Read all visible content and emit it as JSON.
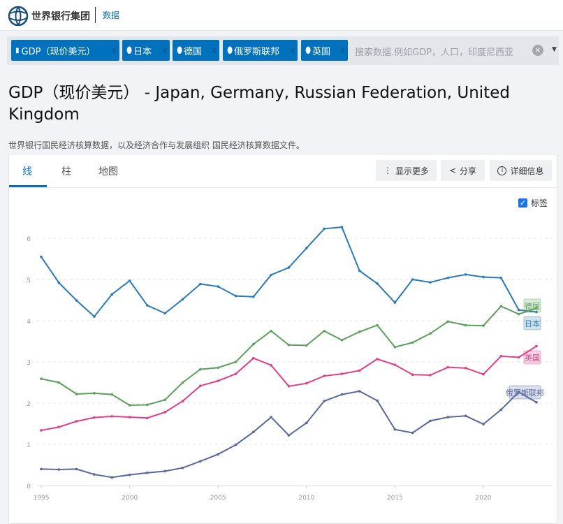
{
  "header": {
    "logo_text": "世界银行集团",
    "data_link": "数据"
  },
  "filters": {
    "chips": [
      {
        "label": "GDP（现价美元）",
        "icon": "bar-chart-icon"
      },
      {
        "label": "日本",
        "icon": "map-pin-icon"
      },
      {
        "label": "德国",
        "icon": "map-pin-icon"
      },
      {
        "label": "俄罗斯联邦",
        "icon": "map-pin-icon"
      },
      {
        "label": "英国",
        "icon": "map-pin-icon"
      }
    ],
    "remove": "x",
    "search_placeholder": "搜索数据.例如GDP，人口，印度尼西亚",
    "clear": "×"
  },
  "page": {
    "title": "GDP（现价美元） - Japan, Germany, Russian Federation, United Kingdom",
    "source": "世界银行国民经济核算数据，以及经济合作与发展组织 国民经济核算数据文件。"
  },
  "tabs": [
    {
      "label": "线"
    },
    {
      "label": "柱"
    },
    {
      "label": "地图"
    }
  ],
  "actions": {
    "more": "显示更多",
    "share": "分享",
    "details": "详细信息"
  },
  "labels_toggle": {
    "label": "标签",
    "checked": true
  },
  "chart_data": {
    "type": "line",
    "title": "GDP（现价美元）",
    "x": [
      1995,
      1996,
      1997,
      1998,
      1999,
      2000,
      2001,
      2002,
      2003,
      2004,
      2005,
      2006,
      2007,
      2008,
      2009,
      2010,
      2011,
      2012,
      2013,
      2014,
      2015,
      2016,
      2017,
      2018,
      2019,
      2020,
      2021,
      2022,
      2023
    ],
    "xticks": [
      "1995",
      "2000",
      "2005",
      "2010",
      "2015",
      "2020"
    ],
    "yticks": [
      "0",
      "1",
      "2",
      "3",
      "4",
      "5",
      "6"
    ],
    "ylim": [
      0,
      6
    ],
    "grid": true,
    "series": [
      {
        "name": "日本",
        "color": "#2b7bba",
        "values": [
          5.55,
          4.92,
          4.49,
          4.1,
          4.64,
          4.97,
          4.37,
          4.18,
          4.52,
          4.89,
          4.83,
          4.6,
          4.58,
          5.11,
          5.29,
          5.76,
          6.23,
          6.27,
          5.21,
          4.9,
          4.44,
          5.0,
          4.93,
          5.04,
          5.12,
          5.06,
          5.04,
          4.26,
          4.21
        ]
      },
      {
        "name": "德国",
        "color": "#5ba05b",
        "values": [
          2.59,
          2.5,
          2.22,
          2.24,
          2.21,
          1.95,
          1.96,
          2.08,
          2.5,
          2.82,
          2.86,
          3.0,
          3.43,
          3.75,
          3.41,
          3.4,
          3.75,
          3.53,
          3.73,
          3.89,
          3.36,
          3.47,
          3.69,
          3.98,
          3.89,
          3.88,
          4.35,
          4.16,
          4.3
        ]
      },
      {
        "name": "英国",
        "color": "#e13f87",
        "values": [
          1.34,
          1.42,
          1.56,
          1.65,
          1.68,
          1.66,
          1.64,
          1.78,
          2.05,
          2.42,
          2.54,
          2.71,
          3.09,
          2.92,
          2.41,
          2.48,
          2.66,
          2.71,
          2.79,
          3.07,
          2.93,
          2.69,
          2.68,
          2.87,
          2.85,
          2.7,
          3.14,
          3.11,
          3.38
        ]
      },
      {
        "name": "俄罗斯联邦",
        "color": "#56689e",
        "values": [
          0.4,
          0.39,
          0.4,
          0.27,
          0.2,
          0.26,
          0.31,
          0.35,
          0.43,
          0.59,
          0.76,
          0.99,
          1.3,
          1.66,
          1.22,
          1.52,
          2.05,
          2.21,
          2.29,
          2.06,
          1.36,
          1.28,
          1.57,
          1.66,
          1.69,
          1.49,
          1.84,
          2.27,
          2.02
        ]
      }
    ]
  }
}
